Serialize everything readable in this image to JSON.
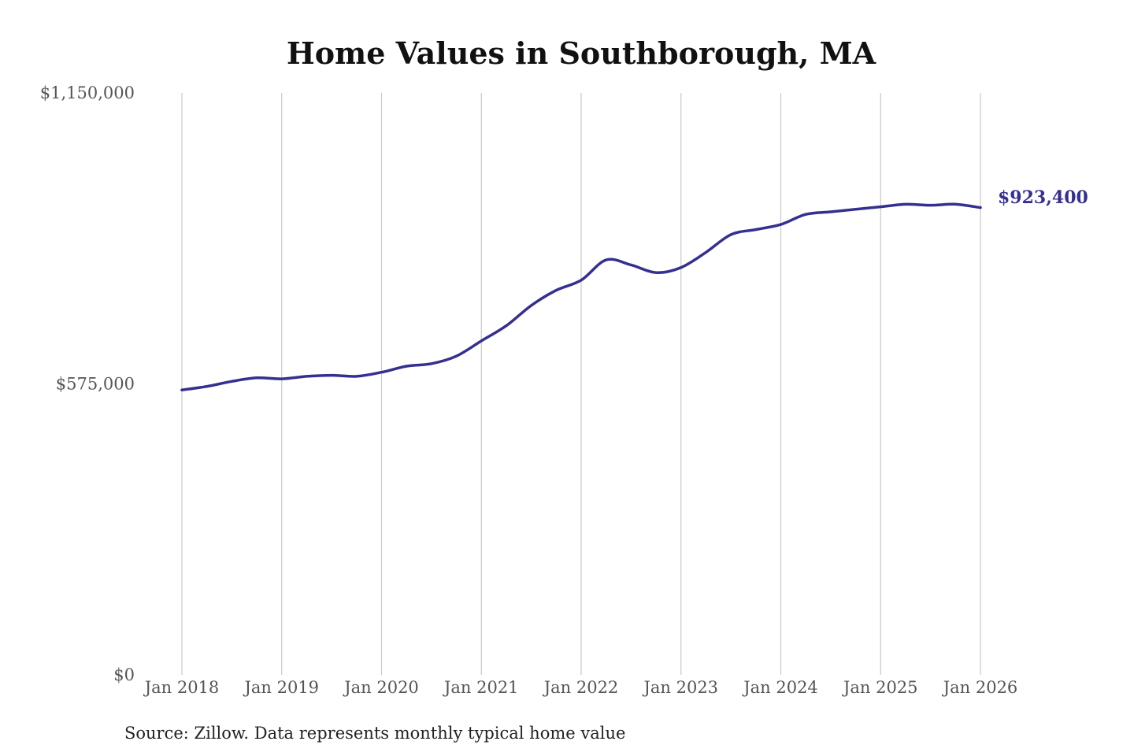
{
  "chart_data": {
    "type": "line",
    "title": "Home Values in Southborough, MA",
    "xlabel": "",
    "ylabel": "",
    "ylim": [
      0,
      1150000
    ],
    "y_ticks": [
      {
        "value": 0,
        "label": "$0"
      },
      {
        "value": 575000,
        "label": "$575,000"
      },
      {
        "value": 1150000,
        "label": "$1,150,000"
      }
    ],
    "x_ticks": [
      {
        "date": "2018-01",
        "label": "Jan 2018"
      },
      {
        "date": "2019-01",
        "label": "Jan 2019"
      },
      {
        "date": "2020-01",
        "label": "Jan 2020"
      },
      {
        "date": "2021-01",
        "label": "Jan 2021"
      },
      {
        "date": "2022-01",
        "label": "Jan 2022"
      },
      {
        "date": "2023-01",
        "label": "Jan 2023"
      },
      {
        "date": "2024-01",
        "label": "Jan 2024"
      },
      {
        "date": "2025-01",
        "label": "Jan 2025"
      },
      {
        "date": "2026-01",
        "label": "Jan 2026"
      }
    ],
    "xlim": [
      "2018-01",
      "2026-01"
    ],
    "vertical_grid": true,
    "horizontal_grid": false,
    "line_color": "#35308f",
    "end_label": "$923,400",
    "series": [
      {
        "x": [
          "2018-01",
          "2018-04",
          "2018-07",
          "2018-10",
          "2019-01",
          "2019-04",
          "2019-07",
          "2019-10",
          "2020-01",
          "2020-04",
          "2020-07",
          "2020-10",
          "2021-01",
          "2021-04",
          "2021-07",
          "2021-10",
          "2022-01",
          "2022-04",
          "2022-07",
          "2022-10",
          "2023-01",
          "2023-04",
          "2023-07",
          "2023-10",
          "2024-01",
          "2024-04",
          "2024-07",
          "2024-10",
          "2025-01",
          "2025-04",
          "2025-07",
          "2025-10",
          "2026-01"
        ],
        "values": [
          563000,
          570000,
          580000,
          587000,
          585000,
          590000,
          592000,
          590000,
          598000,
          610000,
          615000,
          630000,
          660000,
          690000,
          730000,
          760000,
          780000,
          820000,
          810000,
          795000,
          805000,
          835000,
          870000,
          880000,
          890000,
          910000,
          915000,
          920000,
          925000,
          930000,
          928000,
          930000,
          923400
        ]
      }
    ]
  },
  "footer": {
    "source": "Source: Zillow. Data represents monthly typical home value"
  }
}
